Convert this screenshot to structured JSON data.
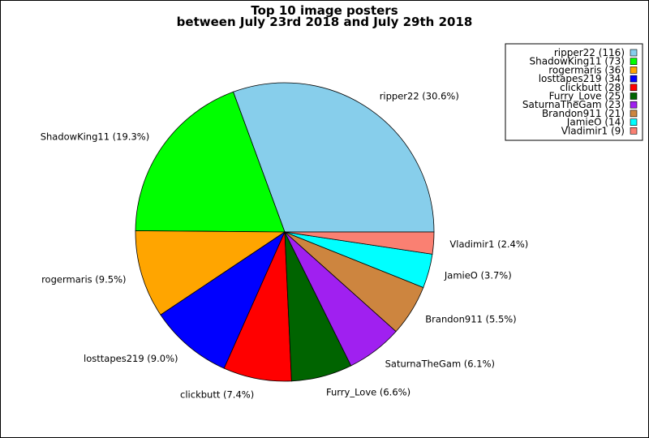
{
  "chart_data": {
    "type": "pie",
    "title": [
      "Top 10 image posters",
      "between July 23rd 2018 and July 29th 2018"
    ],
    "slices": [
      {
        "name": "ripper22",
        "value": 116,
        "percent": "30.6%",
        "color": "#87ceeb"
      },
      {
        "name": "ShadowKing11",
        "value": 73,
        "percent": "19.3%",
        "color": "#00ff00"
      },
      {
        "name": "rogermaris",
        "value": 36,
        "percent": "9.5%",
        "color": "#ffa500"
      },
      {
        "name": "losttapes219",
        "value": 34,
        "percent": "9.0%",
        "color": "#0000ff"
      },
      {
        "name": "clickbutt",
        "value": 28,
        "percent": "7.4%",
        "color": "#ff0000"
      },
      {
        "name": "Furry_Love",
        "value": 25,
        "percent": "6.6%",
        "color": "#006400"
      },
      {
        "name": "SaturnaTheGam",
        "value": 23,
        "percent": "6.1%",
        "color": "#a020f0"
      },
      {
        "name": "Brandon911",
        "value": 21,
        "percent": "5.5%",
        "color": "#cd853f"
      },
      {
        "name": "JamieO",
        "value": 14,
        "percent": "3.7%",
        "color": "#00ffff"
      },
      {
        "name": "Vladimir1",
        "value": 9,
        "percent": "2.4%",
        "color": "#fa8072"
      }
    ],
    "legend_position": "top-right"
  }
}
